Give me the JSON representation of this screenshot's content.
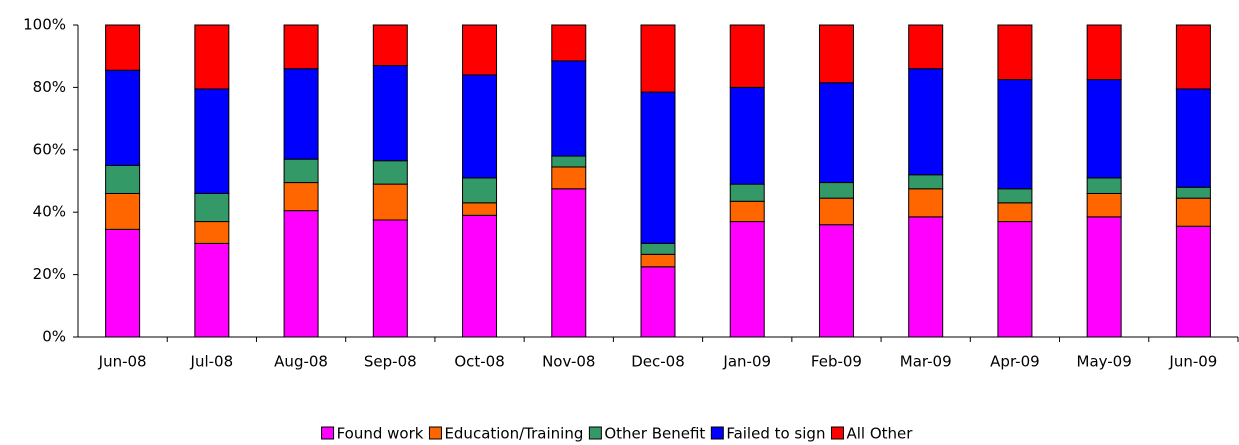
{
  "chart_data": {
    "type": "stacked_bar",
    "categories": [
      "Jun-08",
      "Jul-08",
      "Aug-08",
      "Sep-08",
      "Oct-08",
      "Nov-08",
      "Dec-08",
      "Jan-09",
      "Feb-09",
      "Mar-09",
      "Apr-09",
      "May-09",
      "Jun-09"
    ],
    "series": [
      {
        "name": "Found work",
        "color": "#ff00ff",
        "values": [
          34.5,
          30,
          40.5,
          37.5,
          39,
          47.5,
          22.5,
          37,
          36,
          38.5,
          37,
          38.5,
          35.5
        ]
      },
      {
        "name": "Education/Training",
        "color": "#ff6600",
        "values": [
          11.5,
          7,
          9,
          11.5,
          4,
          7,
          4,
          6.5,
          8.5,
          9,
          6,
          7.5,
          9
        ]
      },
      {
        "name": "Other Benefit",
        "color": "#339966",
        "values": [
          9,
          9,
          7.5,
          7.5,
          8,
          3.5,
          3.5,
          5.5,
          5,
          4.5,
          4.5,
          5,
          3.5
        ]
      },
      {
        "name": "Failed to sign",
        "color": "#0000ff",
        "values": [
          30.5,
          33.5,
          29,
          30.5,
          33,
          30.5,
          48.5,
          31,
          32,
          34,
          35,
          31.5,
          31.5
        ]
      },
      {
        "name": "All Other",
        "color": "#ff0000",
        "values": [
          14.5,
          20.5,
          14,
          13,
          16,
          11.5,
          21.5,
          20,
          18.5,
          14,
          17.5,
          17.5,
          20.5
        ]
      }
    ],
    "ylim": [
      0,
      100
    ],
    "yticks": [
      {
        "value": 0,
        "label": "0%"
      },
      {
        "value": 20,
        "label": "20%"
      },
      {
        "value": 40,
        "label": "40%"
      },
      {
        "value": 60,
        "label": "60%"
      },
      {
        "value": 80,
        "label": "80%"
      },
      {
        "value": 100,
        "label": "100%"
      }
    ],
    "legend": "bottom"
  }
}
